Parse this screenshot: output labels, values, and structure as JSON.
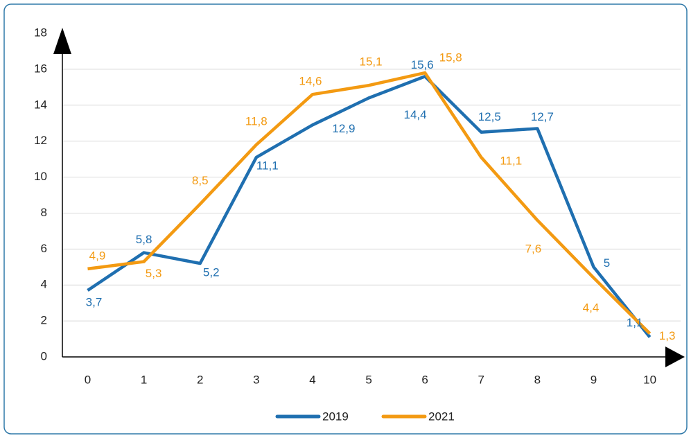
{
  "chart_data": {
    "type": "line",
    "x": [
      0,
      1,
      2,
      3,
      4,
      5,
      6,
      7,
      8,
      9,
      10
    ],
    "series": [
      {
        "name": "2019",
        "color": "#1f6fb0",
        "values": [
          3.7,
          5.8,
          5.2,
          11.1,
          12.9,
          14.4,
          15.6,
          12.5,
          12.7,
          5,
          1.1
        ],
        "value_labels": [
          "3,7",
          "5,8",
          "5,2",
          "11,1",
          "12,9",
          "14,4",
          "15,6",
          "12,5",
          "12,7",
          "5",
          "1,1"
        ]
      },
      {
        "name": "2021",
        "color": "#f39a12",
        "values": [
          4.9,
          5.3,
          8.5,
          11.8,
          14.6,
          15.1,
          15.8,
          11.1,
          7.6,
          4.4,
          1.3
        ],
        "value_labels": [
          "4,9",
          "5,3",
          "8,5",
          "11,8",
          "14,6",
          "15,1",
          "15,8",
          "11,1",
          "7,6",
          "4,4",
          "1,3"
        ]
      }
    ],
    "xlim": [
      -0.45,
      10.35
    ],
    "xticks": [
      0,
      1,
      2,
      3,
      4,
      5,
      6,
      7,
      8,
      9,
      10
    ],
    "ylim": [
      0,
      18
    ],
    "yticks": [
      0,
      2,
      4,
      6,
      8,
      10,
      12,
      14,
      16,
      18
    ],
    "grid": true,
    "legend": "bottom"
  }
}
